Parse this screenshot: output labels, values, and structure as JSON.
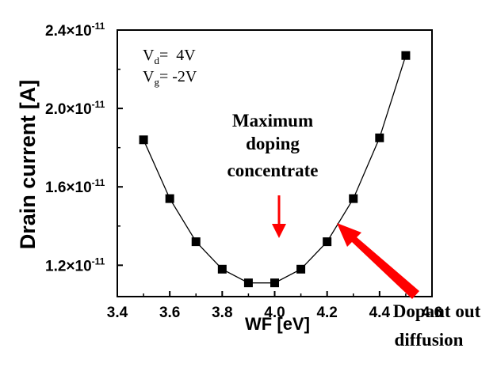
{
  "chart_data": {
    "type": "line",
    "xlabel": "WF [eV]",
    "ylabel": "Drain current [A]",
    "xlim": [
      3.4,
      4.6
    ],
    "ylim": [
      10.4,
      24.0
    ],
    "y_unit_exponent": "-11",
    "x_ticks": [
      "3.4",
      "3.6",
      "3.8",
      "4.0",
      "4.2",
      "4.4",
      "4.6"
    ],
    "y_ticks": [
      {
        "value": 12.0,
        "mantissa": "1.2×10"
      },
      {
        "value": 16.0,
        "mantissa": "1.6×10"
      },
      {
        "value": 20.0,
        "mantissa": "2.0×10"
      },
      {
        "value": 24.0,
        "mantissa": "2.4×10"
      }
    ],
    "grid": false,
    "series": [
      {
        "x": [
          3.5,
          3.6,
          3.7,
          3.8,
          3.9,
          4.0,
          4.1,
          4.2,
          4.3,
          4.4,
          4.5
        ],
        "values": [
          18.4,
          15.4,
          13.2,
          11.8,
          11.1,
          11.1,
          11.8,
          13.2,
          15.4,
          18.5,
          22.7
        ],
        "marker": "square",
        "color": "#000000"
      }
    ],
    "conditions": [
      {
        "base": "V",
        "sub": "d",
        "text": "=  4V"
      },
      {
        "base": "V",
        "sub": "g",
        "text": "= -2V"
      }
    ],
    "annotations": {
      "max_doping": [
        "Maximum",
        "doping",
        "concentrate"
      ],
      "dopant_out": [
        "Dopant out",
        "diffusion"
      ]
    },
    "arrow_color": "#ff0000"
  }
}
